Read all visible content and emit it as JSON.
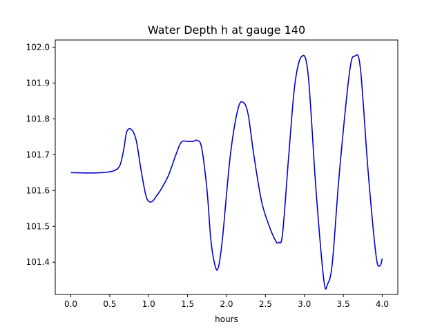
{
  "chart_data": {
    "type": "line",
    "title": "Water Depth h at gauge 140",
    "xlabel": "hours",
    "ylabel": "",
    "xlim": [
      -0.2,
      4.2
    ],
    "ylim": [
      101.31,
      102.02
    ],
    "xticks": [
      0.0,
      0.5,
      1.0,
      1.5,
      2.0,
      2.5,
      3.0,
      3.5,
      4.0
    ],
    "xtick_labels": [
      "0.0",
      "0.5",
      "1.0",
      "1.5",
      "2.0",
      "2.5",
      "3.0",
      "3.5",
      "4.0"
    ],
    "yticks": [
      101.4,
      101.5,
      101.6,
      101.7,
      101.8,
      101.9,
      102.0
    ],
    "ytick_labels": [
      "101.4",
      "101.5",
      "101.6",
      "101.7",
      "101.8",
      "101.9",
      "102.0"
    ],
    "grid": false,
    "legend": "none",
    "series": [
      {
        "color": "#0000cc",
        "x": [
          0.0,
          0.2,
          0.4,
          0.55,
          0.63,
          0.68,
          0.72,
          0.78,
          0.84,
          0.9,
          0.96,
          1.0,
          1.05,
          1.1,
          1.15,
          1.25,
          1.35,
          1.42,
          1.5,
          1.57,
          1.62,
          1.68,
          1.75,
          1.8,
          1.86,
          1.9,
          1.95,
          2.05,
          2.15,
          2.22,
          2.28,
          2.35,
          2.45,
          2.55,
          2.63,
          2.67,
          2.72,
          2.8,
          2.88,
          2.97,
          3.05,
          3.15,
          3.25,
          3.3,
          3.36,
          3.45,
          3.58,
          3.65,
          3.72,
          3.82,
          3.92,
          3.97,
          4.0
        ],
        "y": [
          101.65,
          101.649,
          101.65,
          101.655,
          101.67,
          101.715,
          101.765,
          101.77,
          101.74,
          101.66,
          101.59,
          101.57,
          101.57,
          101.585,
          101.6,
          101.64,
          101.7,
          101.735,
          101.737,
          101.737,
          101.74,
          101.72,
          101.6,
          101.46,
          101.385,
          101.39,
          101.47,
          101.7,
          101.83,
          101.845,
          101.81,
          101.7,
          101.57,
          101.5,
          101.46,
          101.455,
          101.48,
          101.7,
          101.9,
          101.975,
          101.92,
          101.6,
          101.35,
          101.34,
          101.4,
          101.65,
          101.93,
          101.975,
          101.94,
          101.65,
          101.42,
          101.39,
          101.41
        ]
      }
    ]
  }
}
